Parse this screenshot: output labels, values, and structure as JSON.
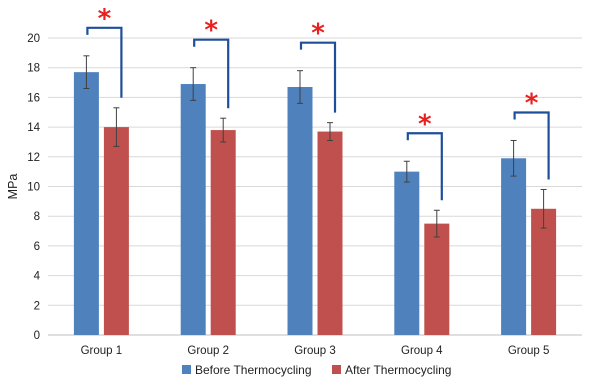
{
  "chart_data": {
    "type": "bar",
    "ylabel": "MPa",
    "xlabel": "",
    "ylim": [
      0,
      20
    ],
    "yticks": [
      0,
      2,
      4,
      6,
      8,
      10,
      12,
      14,
      16,
      18,
      20
    ],
    "grid": true,
    "legend_position": "bottom",
    "categories": [
      "Group 1",
      "Group 2",
      "Group 3",
      "Group 4",
      "Group 5"
    ],
    "series": [
      {
        "name": "Before Thermocycling",
        "color": "#4f81bd",
        "values": [
          17.7,
          16.9,
          16.7,
          11.0,
          11.9
        ],
        "errors": [
          1.1,
          1.1,
          1.1,
          0.7,
          1.2
        ]
      },
      {
        "name": "After Thermocycling",
        "color": "#c0504d",
        "values": [
          14.0,
          13.8,
          13.7,
          7.5,
          8.5
        ],
        "errors": [
          1.3,
          0.8,
          0.6,
          0.9,
          1.3
        ]
      }
    ],
    "annotations": {
      "marker": "*",
      "marker_color": "#e8201f",
      "bracket_color": "#1f4e9a",
      "significant": [
        true,
        true,
        true,
        true,
        true
      ]
    }
  }
}
